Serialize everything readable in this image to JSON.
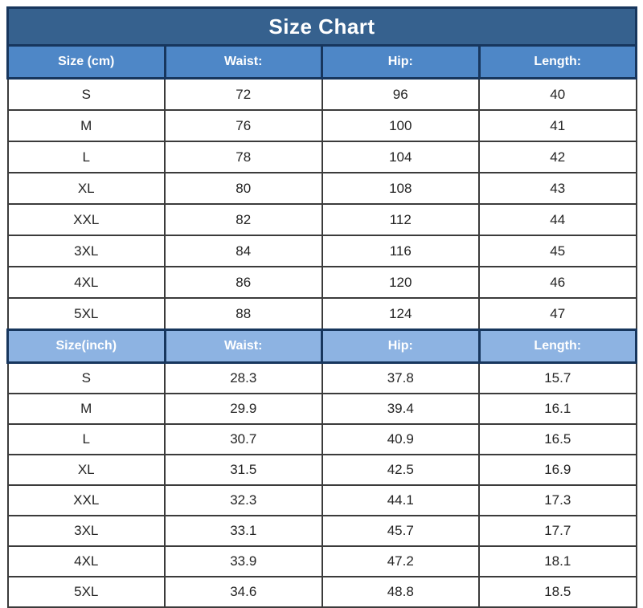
{
  "title": "Size Chart",
  "colors": {
    "title_bg": "#36618E",
    "header_cm_bg": "#4E87C7",
    "header_inch_bg": "#8DB3E2",
    "header_border": "#17365D",
    "cell_border": "#3B3B3B",
    "title_text": "#FFFFFF",
    "header_text": "#FFFFFF",
    "cell_text": "#242424",
    "page_bg": "#FFFFFF"
  },
  "chart_data": {
    "type": "table",
    "title": "Size Chart",
    "sections": [
      {
        "unit": "cm",
        "header": [
          "Size (cm)",
          "Waist:",
          "Hip:",
          "Length:"
        ],
        "rows": [
          [
            "S",
            "72",
            "96",
            "40"
          ],
          [
            "M",
            "76",
            "100",
            "41"
          ],
          [
            "L",
            "78",
            "104",
            "42"
          ],
          [
            "XL",
            "80",
            "108",
            "43"
          ],
          [
            "XXL",
            "82",
            "112",
            "44"
          ],
          [
            "3XL",
            "84",
            "116",
            "45"
          ],
          [
            "4XL",
            "86",
            "120",
            "46"
          ],
          [
            "5XL",
            "88",
            "124",
            "47"
          ]
        ]
      },
      {
        "unit": "inch",
        "header": [
          "Size(inch)",
          "Waist:",
          "Hip:",
          "Length:"
        ],
        "rows": [
          [
            "S",
            "28.3",
            "37.8",
            "15.7"
          ],
          [
            "M",
            "29.9",
            "39.4",
            "16.1"
          ],
          [
            "L",
            "30.7",
            "40.9",
            "16.5"
          ],
          [
            "XL",
            "31.5",
            "42.5",
            "16.9"
          ],
          [
            "XXL",
            "32.3",
            "44.1",
            "17.3"
          ],
          [
            "3XL",
            "33.1",
            "45.7",
            "17.7"
          ],
          [
            "4XL",
            "33.9",
            "47.2",
            "18.1"
          ],
          [
            "5XL",
            "34.6",
            "48.8",
            "18.5"
          ]
        ]
      }
    ]
  }
}
